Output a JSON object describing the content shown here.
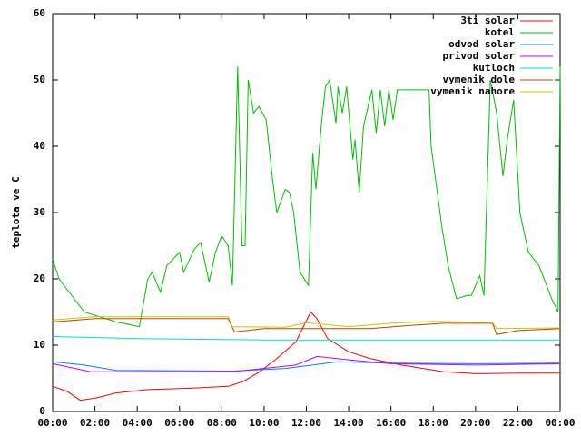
{
  "chart_data": {
    "type": "line",
    "ylabel": "teplota ve C",
    "xlim": [
      0,
      24
    ],
    "ylim": [
      0,
      60
    ],
    "xticks": [
      {
        "value": 0,
        "label": "00:00"
      },
      {
        "value": 2,
        "label": "02:00"
      },
      {
        "value": 4,
        "label": "04:00"
      },
      {
        "value": 6,
        "label": "06:00"
      },
      {
        "value": 8,
        "label": "08:00"
      },
      {
        "value": 10,
        "label": "10:00"
      },
      {
        "value": 12,
        "label": "12:00"
      },
      {
        "value": 14,
        "label": "14:00"
      },
      {
        "value": 16,
        "label": "16:00"
      },
      {
        "value": 18,
        "label": "18:00"
      },
      {
        "value": 20,
        "label": "20:00"
      },
      {
        "value": 22,
        "label": "22:00"
      },
      {
        "value": 24,
        "label": "00:00"
      }
    ],
    "yticks": [
      0,
      10,
      20,
      30,
      40,
      50,
      60
    ],
    "legend": "top-right",
    "series": [
      {
        "name": "3ti solar",
        "color": "#ff0000",
        "x": [
          0,
          0.7,
          1.3,
          2,
          3,
          4.5,
          6.5,
          8.3,
          9,
          9.8,
          10.6,
          11.5,
          12.2,
          12.5,
          13,
          14,
          15,
          16.5,
          18.5,
          20,
          22,
          24
        ],
        "values": [
          3.8,
          3,
          1.7,
          2,
          2.8,
          3.3,
          3.5,
          3.8,
          4.5,
          6,
          8,
          10.5,
          15,
          14,
          11,
          9,
          8,
          7,
          6,
          5.7,
          5.8,
          5.8
        ]
      },
      {
        "name": "kotel",
        "color": "#00c000",
        "x": [
          0,
          0.3,
          1.5,
          3,
          4.1,
          4.5,
          4.7,
          5.1,
          5.4,
          6,
          6.2,
          6.7,
          7,
          7.4,
          7.7,
          8,
          8.3,
          8.5,
          8.75,
          8.95,
          9.1,
          9.25,
          9.5,
          9.75,
          10.1,
          10.4,
          10.6,
          11,
          11.2,
          11.4,
          11.7,
          12.1,
          12.3,
          12.45,
          12.7,
          12.9,
          13.1,
          13.4,
          13.5,
          13.7,
          13.9,
          14.2,
          14.3,
          14.5,
          14.7,
          15.1,
          15.3,
          15.5,
          15.7,
          15.9,
          16.1,
          16.3,
          17.8,
          17.9,
          18.4,
          18.7,
          19.1,
          19.6,
          19.8,
          20.2,
          20.4,
          20.7,
          21,
          21.3,
          21.5,
          21.8,
          22.1,
          22.5,
          23,
          23.6,
          23.9,
          24
        ],
        "values": [
          23,
          20,
          15,
          13.5,
          12.8,
          20,
          21,
          18,
          22,
          24,
          21,
          24.5,
          25.5,
          19.5,
          24,
          26.5,
          25,
          19,
          52,
          25,
          25,
          50,
          45,
          46,
          44,
          35,
          30,
          33.5,
          33,
          30,
          21,
          19,
          39,
          33.5,
          43,
          49,
          50,
          43.5,
          49,
          45,
          49,
          38,
          41,
          33,
          43,
          48.5,
          42,
          48.5,
          43,
          48.5,
          44,
          48.5,
          48.5,
          40,
          28,
          22,
          17,
          17.5,
          17.5,
          20.5,
          17.5,
          50,
          45,
          35.5,
          41,
          47,
          30,
          24,
          22,
          17,
          15,
          52
        ]
      },
      {
        "name": "odvod solar",
        "color": "#0080ff",
        "x": [
          0,
          1.5,
          3,
          8.5,
          11,
          13.5,
          16,
          20,
          24
        ],
        "values": [
          7.5,
          7,
          6.2,
          6.1,
          6.5,
          7.5,
          7.3,
          7.2,
          7.3
        ]
      },
      {
        "name": "privod solar",
        "color": "#c000ff",
        "x": [
          0,
          1.8,
          8.5,
          11.5,
          12.5,
          14,
          16,
          20,
          24
        ],
        "values": [
          7.2,
          6,
          6,
          7,
          8.3,
          7.8,
          7.2,
          7,
          7.2
        ]
      },
      {
        "name": "kutloch",
        "color": "#00dddd",
        "x": [
          0,
          4,
          10,
          24
        ],
        "values": [
          11.3,
          11,
          10.8,
          10.8
        ]
      },
      {
        "name": "vymenik dole",
        "color": "#c04000",
        "x": [
          0,
          2,
          8.3,
          8.6,
          10,
          12.5,
          15,
          17,
          18.5,
          20.8,
          21,
          22,
          24
        ],
        "values": [
          13.5,
          14,
          14,
          12,
          12.5,
          12.5,
          12.5,
          13,
          13.3,
          13.3,
          11.6,
          12.2,
          12.5
        ]
      },
      {
        "name": "vymenik nahore",
        "color": "#c8c800",
        "x": [
          0,
          2,
          8.3,
          8.5,
          11,
          12,
          14,
          16,
          18,
          20.8,
          21,
          24
        ],
        "values": [
          13.8,
          14.3,
          14.3,
          12.8,
          12.7,
          13.4,
          12.8,
          13.3,
          13.6,
          13.4,
          12.5,
          12.6
        ]
      }
    ]
  }
}
